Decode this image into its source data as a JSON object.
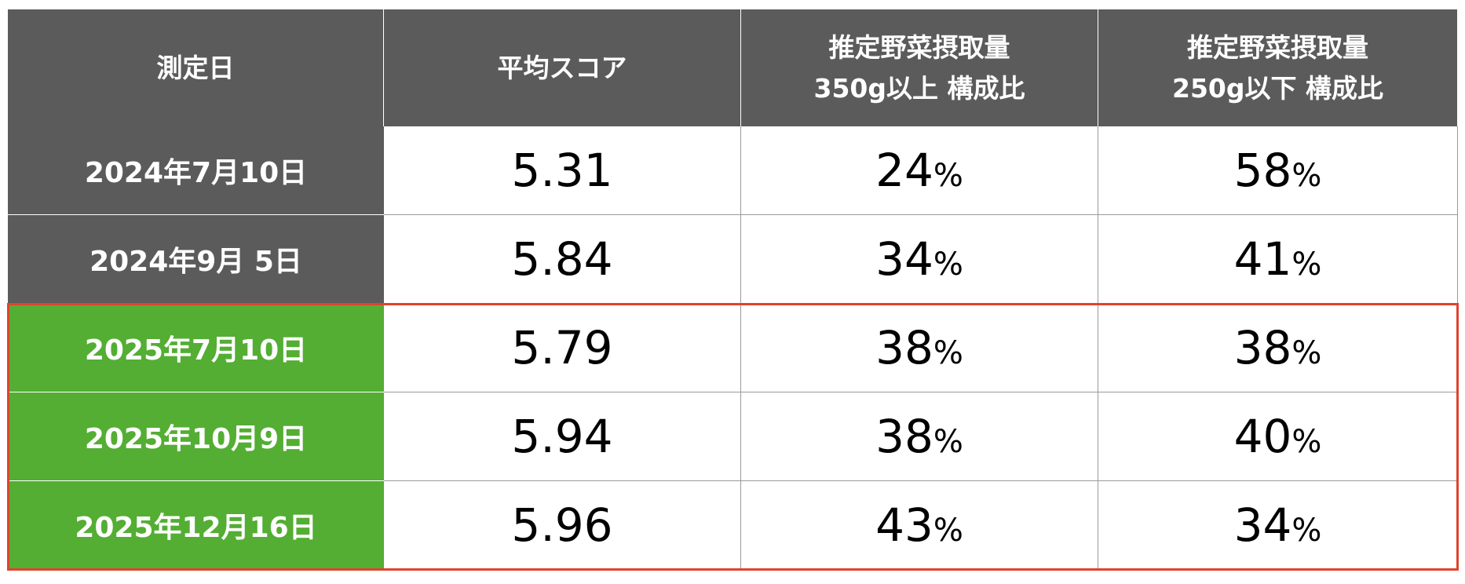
{
  "table": {
    "headers": [
      {
        "lines": [
          "測定日"
        ]
      },
      {
        "lines": [
          "平均スコア"
        ]
      },
      {
        "lines": [
          "推定野菜摂取量",
          "350g以上 構成比"
        ]
      },
      {
        "lines": [
          "推定野菜摂取量",
          "250g以下 構成比"
        ]
      }
    ],
    "rows": [
      [
        "2024年7月10日",
        "5.31",
        "24%",
        "58%"
      ],
      [
        "2024年9月 5日",
        "5.84",
        "34%",
        "41%"
      ],
      [
        "2025年7月10日",
        "5.79",
        "38%",
        "38%"
      ],
      [
        "2025年10月9日",
        "5.94",
        "38%",
        "40%"
      ],
      [
        "2025年12月16日",
        "5.96",
        "43%",
        "34%"
      ]
    ]
  }
}
